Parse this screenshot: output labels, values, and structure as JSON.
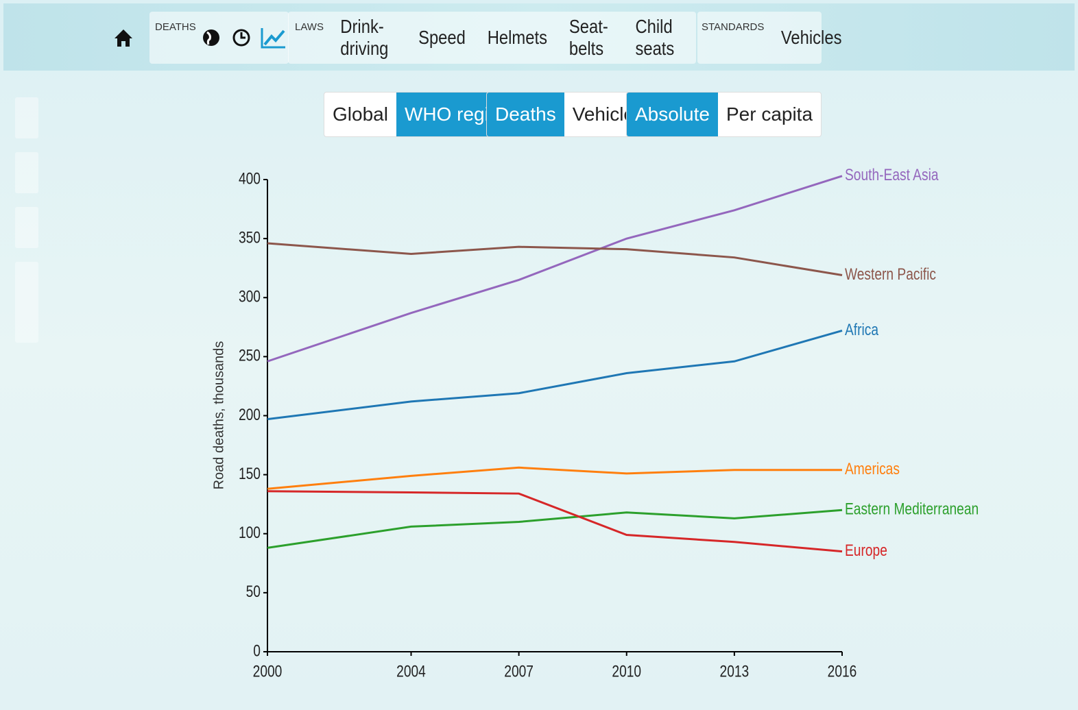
{
  "nav": {
    "deaths_label": "DEATHS",
    "laws_label": "LAWS",
    "laws": [
      "Drink-driving",
      "Speed",
      "Helmets",
      "Seat-belts",
      "Child seats"
    ],
    "standards_label": "STANDARDS",
    "standards": [
      "Vehicles"
    ]
  },
  "toggles": [
    {
      "options": [
        "Global",
        "WHO regions"
      ],
      "active": 1
    },
    {
      "options": [
        "Deaths",
        "Vehicles"
      ],
      "active": 0
    },
    {
      "options": [
        "Absolute",
        "Per capita"
      ],
      "active": 0
    }
  ],
  "chart_data": {
    "type": "line",
    "y_label": "Road deaths, thousands",
    "x": [
      2000,
      2004,
      2007,
      2010,
      2013,
      2016
    ],
    "xlim": [
      2000,
      2016
    ],
    "xticks": [
      2000,
      2004,
      2007,
      2010,
      2013,
      2016
    ],
    "ylim": [
      0,
      400
    ],
    "yticks": [
      0,
      50,
      100,
      150,
      200,
      250,
      300,
      350,
      400
    ],
    "series": [
      {
        "name": "South-East Asia",
        "color": "#9467bd",
        "values": [
          246,
          287,
          315,
          350,
          374,
          403
        ]
      },
      {
        "name": "Western Pacific",
        "color": "#8c564b",
        "values": [
          346,
          337,
          343,
          341,
          334,
          319
        ]
      },
      {
        "name": "Africa",
        "color": "#1f77b4",
        "values": [
          197,
          212,
          219,
          236,
          246,
          272
        ]
      },
      {
        "name": "Americas",
        "color": "#ff7f0e",
        "values": [
          138,
          149,
          156,
          151,
          154,
          154
        ]
      },
      {
        "name": "Eastern Mediterranean",
        "color": "#2ca02c",
        "values": [
          88,
          106,
          110,
          118,
          113,
          120
        ]
      },
      {
        "name": "Europe",
        "color": "#d62728",
        "values": [
          136,
          135,
          134,
          99,
          93,
          85
        ]
      }
    ]
  }
}
